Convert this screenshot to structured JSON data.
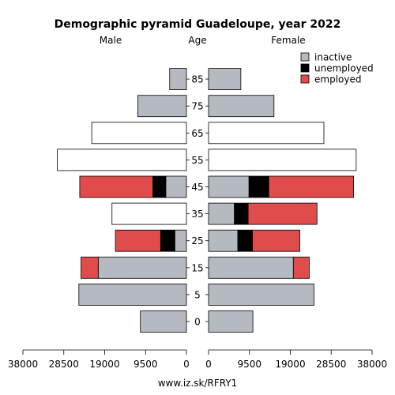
{
  "chart_data": {
    "type": "bar",
    "title": "Demographic pyramid Guadeloupe, year 2022",
    "left_label": "Male",
    "center_label": "Age",
    "right_label": "Female",
    "source": "www.iz.sk/RFRY1",
    "age_groups": [
      "0",
      "5",
      "15",
      "25",
      "35",
      "45",
      "55",
      "65",
      "75",
      "85"
    ],
    "axis_ticks_male": [
      "38000",
      "28500",
      "19000",
      "9500",
      "0"
    ],
    "axis_ticks_female": [
      "0",
      "9500",
      "19000",
      "28500",
      "38000"
    ],
    "xlim": [
      0,
      38000
    ],
    "legend": {
      "placement": "top-right",
      "items": [
        {
          "key": "inactive",
          "label": "inactive",
          "color": "#b4b9c2"
        },
        {
          "key": "unemployed",
          "label": "unemployed",
          "color": "#000000"
        },
        {
          "key": "employed",
          "label": "employed",
          "color": "#e04c4c"
        }
      ]
    },
    "series": {
      "male": [
        {
          "age": "0",
          "total": 10700
        },
        {
          "age": "5",
          "total": 25000
        },
        {
          "age": "15",
          "inactive": 20500,
          "unemployed": 0,
          "employed": 4000
        },
        {
          "age": "25",
          "inactive": 2700,
          "unemployed": 3300,
          "employed": 10500
        },
        {
          "age": "35",
          "total": 17300
        },
        {
          "age": "45",
          "inactive": 4800,
          "unemployed": 3000,
          "employed": 17000
        },
        {
          "age": "55",
          "total": 30000
        },
        {
          "age": "65",
          "total": 22000
        },
        {
          "age": "75",
          "total": 11300
        },
        {
          "age": "85",
          "total": 3900
        }
      ],
      "female": [
        {
          "age": "0",
          "total": 10300
        },
        {
          "age": "5",
          "total": 24500
        },
        {
          "age": "15",
          "inactive": 19700,
          "unemployed": 0,
          "employed": 3700
        },
        {
          "age": "25",
          "inactive": 6800,
          "unemployed": 3400,
          "employed": 11000
        },
        {
          "age": "35",
          "inactive": 6000,
          "unemployed": 3200,
          "employed": 16000
        },
        {
          "age": "45",
          "inactive": 9400,
          "unemployed": 4600,
          "employed": 19700
        },
        {
          "age": "55",
          "total": 34300
        },
        {
          "age": "65",
          "total": 26800
        },
        {
          "age": "75",
          "total": 15200
        },
        {
          "age": "85",
          "total": 7500
        }
      ]
    }
  }
}
